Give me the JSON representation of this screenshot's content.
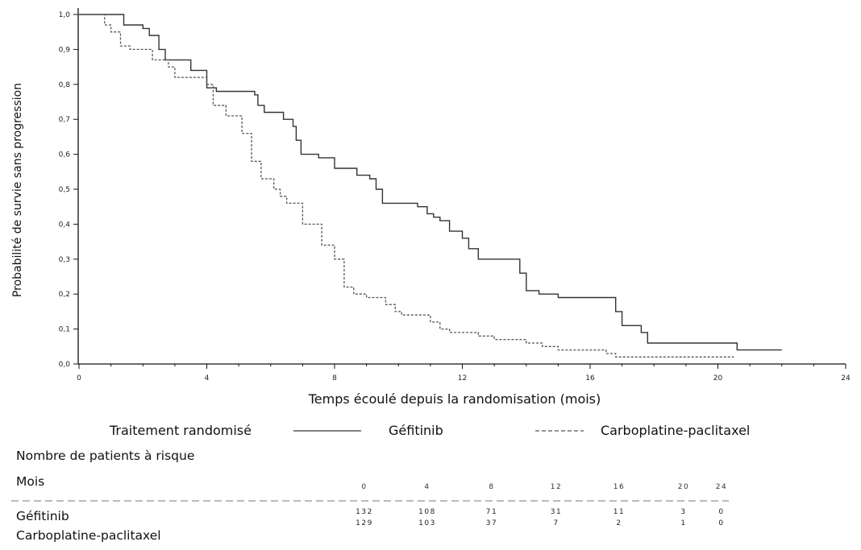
{
  "chart_data": {
    "type": "line",
    "xlabel": "Temps écoulé depuis la randomisation (mois)",
    "ylabel": "Probabilité de survie sans progression",
    "xlim": [
      0,
      24
    ],
    "ylim": [
      0,
      1.0
    ],
    "xticks": [
      "0",
      "4",
      "8",
      "12",
      "16",
      "20",
      "24"
    ],
    "yticks": [
      "0,0",
      "0,1",
      "0,2",
      "0,3",
      "0,4",
      "0,5",
      "0,6",
      "0,7",
      "0,8",
      "0,9",
      "1,0"
    ],
    "grid": false,
    "series": [
      {
        "name": "Géfitinib",
        "style": "solid",
        "color": "#333333",
        "x": [
          0,
          1.3,
          1.4,
          2.0,
          2.2,
          2.5,
          2.7,
          3.5,
          4.0,
          4.3,
          5.5,
          5.6,
          5.8,
          6.4,
          6.7,
          6.8,
          6.95,
          7.5,
          8.0,
          8.7,
          9.1,
          9.3,
          9.5,
          10.6,
          10.9,
          11.1,
          11.3,
          11.6,
          12.0,
          12.2,
          12.5,
          13.5,
          13.8,
          14.0,
          14.4,
          15.0,
          16.6,
          16.8,
          17.0,
          17.6,
          17.8,
          18.5,
          20.6,
          22.0
        ],
        "y": [
          1.0,
          1.0,
          0.97,
          0.96,
          0.94,
          0.9,
          0.87,
          0.84,
          0.79,
          0.78,
          0.77,
          0.74,
          0.72,
          0.7,
          0.68,
          0.64,
          0.6,
          0.59,
          0.56,
          0.54,
          0.53,
          0.5,
          0.46,
          0.45,
          0.43,
          0.42,
          0.41,
          0.38,
          0.36,
          0.33,
          0.3,
          0.3,
          0.26,
          0.21,
          0.2,
          0.19,
          0.19,
          0.15,
          0.11,
          0.09,
          0.06,
          0.06,
          0.04,
          0.04
        ]
      },
      {
        "name": "Carboplatine-paclitaxel",
        "style": "dashed",
        "color": "#555555",
        "x": [
          0,
          0.8,
          1.0,
          1.3,
          1.6,
          2.3,
          2.8,
          3.0,
          4.0,
          4.2,
          4.6,
          5.1,
          5.4,
          5.7,
          6.1,
          6.3,
          6.5,
          7.0,
          7.6,
          8.0,
          8.3,
          8.6,
          9.0,
          9.6,
          9.9,
          10.1,
          11.0,
          11.3,
          11.6,
          12.5,
          13.0,
          14.0,
          14.5,
          15.0,
          16.5,
          16.8,
          18.5,
          20.5
        ],
        "y": [
          1.0,
          0.97,
          0.95,
          0.91,
          0.9,
          0.87,
          0.85,
          0.82,
          0.8,
          0.74,
          0.71,
          0.66,
          0.58,
          0.53,
          0.5,
          0.48,
          0.46,
          0.4,
          0.34,
          0.3,
          0.22,
          0.2,
          0.19,
          0.17,
          0.15,
          0.14,
          0.12,
          0.1,
          0.09,
          0.08,
          0.07,
          0.06,
          0.05,
          0.04,
          0.03,
          0.02,
          0.02,
          0.02
        ]
      }
    ]
  },
  "legend": {
    "heading": "Traitement randomisé",
    "items": [
      {
        "label": "Géfitinib",
        "style": "solid"
      },
      {
        "label": "Carboplatine-paclitaxel",
        "style": "dashed"
      }
    ]
  },
  "risk_table": {
    "heading": "Nombre de patients à risque",
    "months_label": "Mois",
    "months": [
      "0",
      "4",
      "8",
      "12",
      "16",
      "20",
      "24"
    ],
    "rows": [
      {
        "label": "Géfitinib",
        "values": [
          "132",
          "108",
          "71",
          "31",
          "11",
          "3",
          "0"
        ]
      },
      {
        "label": "Carboplatine-paclitaxel",
        "values": [
          "129",
          "103",
          "37",
          "7",
          "2",
          "1",
          "0"
        ]
      }
    ]
  }
}
